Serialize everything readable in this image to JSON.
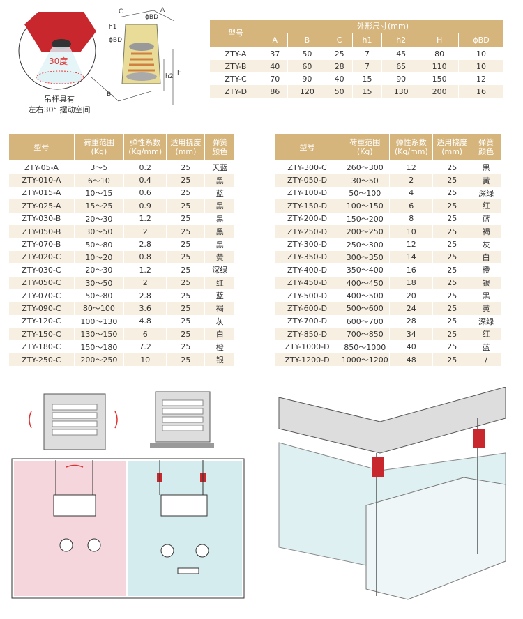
{
  "diagram": {
    "angle_label": "30度",
    "caption_line1": "吊杆具有",
    "caption_line2": "左右30° 摆动空间",
    "dim_labels": [
      "C",
      "A",
      "h1",
      "ϕBD",
      "ϕBD",
      "h2",
      "H",
      "B"
    ]
  },
  "dimension_table": {
    "model_header": "型号",
    "group_header": "外形尺寸(mm)",
    "columns": [
      "A",
      "B",
      "C",
      "h1",
      "h2",
      "H",
      "ϕBD"
    ],
    "rows": [
      [
        "ZTY-A",
        "37",
        "50",
        "25",
        "7",
        "45",
        "80",
        "10"
      ],
      [
        "ZTY-B",
        "40",
        "60",
        "28",
        "7",
        "65",
        "110",
        "10"
      ],
      [
        "ZTY-C",
        "70",
        "90",
        "40",
        "15",
        "90",
        "150",
        "12"
      ],
      [
        "ZTY-D",
        "86",
        "120",
        "50",
        "15",
        "130",
        "200",
        "16"
      ]
    ]
  },
  "spec_headers": [
    [
      "型号"
    ],
    [
      "荷重范围",
      "(Kg)"
    ],
    [
      "弹性系数",
      "(Kg/mm)"
    ],
    [
      "适用挠度",
      "(mm)"
    ],
    [
      "弹簧",
      "颜色"
    ]
  ],
  "spec_table_left": [
    [
      "ZTY-05-A",
      "3～5",
      "0.2",
      "25",
      "天蓝"
    ],
    [
      "ZTY-010-A",
      "6～10",
      "0.4",
      "25",
      "黑"
    ],
    [
      "ZTY-015-A",
      "10～15",
      "0.6",
      "25",
      "蓝"
    ],
    [
      "ZTY-025-A",
      "15～25",
      "0.9",
      "25",
      "黑"
    ],
    [
      "ZTY-030-B",
      "20～30",
      "1.2",
      "25",
      "黑"
    ],
    [
      "ZTY-050-B",
      "30～50",
      "2",
      "25",
      "黑"
    ],
    [
      "ZTY-070-B",
      "50～80",
      "2.8",
      "25",
      "黑"
    ],
    [
      "ZTY-020-C",
      "10～20",
      "0.8",
      "25",
      "黄"
    ],
    [
      "ZTY-030-C",
      "20～30",
      "1.2",
      "25",
      "深绿"
    ],
    [
      "ZTY-050-C",
      "30～50",
      "2",
      "25",
      "红"
    ],
    [
      "ZTY-070-C",
      "50～80",
      "2.8",
      "25",
      "蓝"
    ],
    [
      "ZTY-090-C",
      "80～100",
      "3.6",
      "25",
      "褐"
    ],
    [
      "ZTY-120-C",
      "100～130",
      "4.8",
      "25",
      "灰"
    ],
    [
      "ZTY-150-C",
      "130～150",
      "6",
      "25",
      "白"
    ],
    [
      "ZTY-180-C",
      "150～180",
      "7.2",
      "25",
      "橙"
    ],
    [
      "ZTY-250-C",
      "200～250",
      "10",
      "25",
      "银"
    ]
  ],
  "spec_table_right": [
    [
      "ZTY-300-C",
      "260～300",
      "12",
      "25",
      "黑"
    ],
    [
      "ZTY-050-D",
      "30～50",
      "2",
      "25",
      "黄"
    ],
    [
      "ZTY-100-D",
      "50～100",
      "4",
      "25",
      "深绿"
    ],
    [
      "ZTY-150-D",
      "100～150",
      "6",
      "25",
      "红"
    ],
    [
      "ZTY-200-D",
      "150～200",
      "8",
      "25",
      "蓝"
    ],
    [
      "ZTY-250-D",
      "200～250",
      "10",
      "25",
      "褐"
    ],
    [
      "ZTY-300-D",
      "250～300",
      "12",
      "25",
      "灰"
    ],
    [
      "ZTY-350-D",
      "300～350",
      "14",
      "25",
      "白"
    ],
    [
      "ZTY-400-D",
      "350～400",
      "16",
      "25",
      "橙"
    ],
    [
      "ZTY-450-D",
      "400～450",
      "18",
      "25",
      "银"
    ],
    [
      "ZTY-500-D",
      "400～500",
      "20",
      "25",
      "黑"
    ],
    [
      "ZTY-600-D",
      "500～600",
      "24",
      "25",
      "黄"
    ],
    [
      "ZTY-700-D",
      "600～700",
      "28",
      "25",
      "深绿"
    ],
    [
      "ZTY-850-D",
      "700～850",
      "34",
      "25",
      "红"
    ],
    [
      "ZTY-1000-D",
      "850～1000",
      "40",
      "25",
      "蓝"
    ],
    [
      "ZTY-1200-D",
      "1000～1200",
      "48",
      "25",
      "/"
    ]
  ],
  "colors": {
    "header": "#d6b57c",
    "alt_row": "#f7efe2",
    "hanger_red": "#c8272d",
    "hanger_yellow": "#e8dc98"
  }
}
